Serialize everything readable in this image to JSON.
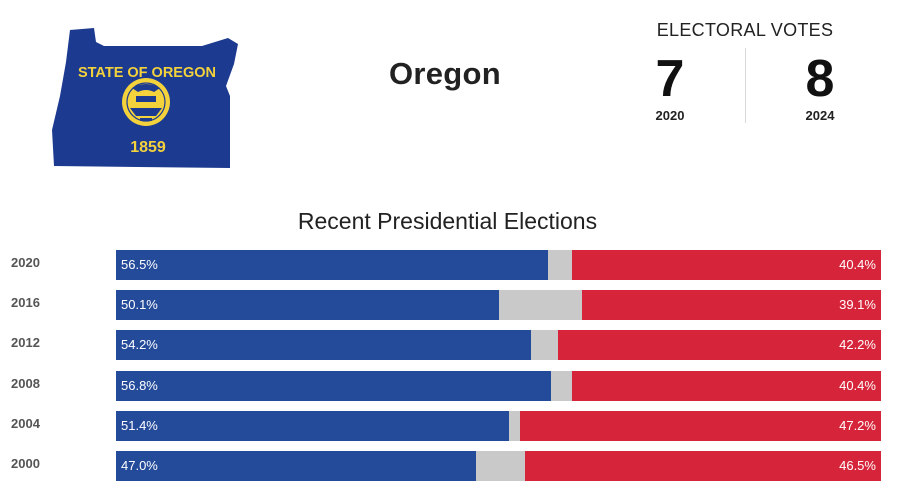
{
  "header": {
    "state_name": "Oregon",
    "flag": {
      "top_text": "STATE OF OREGON",
      "year": "1859",
      "fill_color": "#1c3a8f",
      "text_color": "#f4d23c"
    },
    "electoral_votes": {
      "title": "ELECTORAL VOTES",
      "items": [
        {
          "value": "7",
          "year": "2020"
        },
        {
          "value": "8",
          "year": "2024"
        }
      ]
    }
  },
  "colors": {
    "democrat": "#244a9a",
    "other": "#c9c9c9",
    "republican": "#d6253a"
  },
  "chart_data": {
    "type": "bar",
    "title": "Recent Presidential Elections",
    "categories": [
      "2020",
      "2016",
      "2012",
      "2008",
      "2004",
      "2000"
    ],
    "series": [
      {
        "values": [
          56.5,
          50.1,
          54.2,
          56.8,
          51.4,
          47.0
        ]
      },
      {
        "values": [
          40.4,
          39.1,
          42.2,
          40.4,
          47.2,
          46.5
        ]
      }
    ],
    "labels": {
      "democrat": [
        "56.5%",
        "50.1%",
        "54.2%",
        "56.8%",
        "51.4%",
        "47.0%"
      ],
      "republican": [
        "40.4%",
        "39.1%",
        "42.2%",
        "40.4%",
        "47.2%",
        "46.5%"
      ]
    },
    "stacked": true,
    "orientation": "horizontal",
    "xlim": [
      0,
      100
    ],
    "grid": false
  }
}
